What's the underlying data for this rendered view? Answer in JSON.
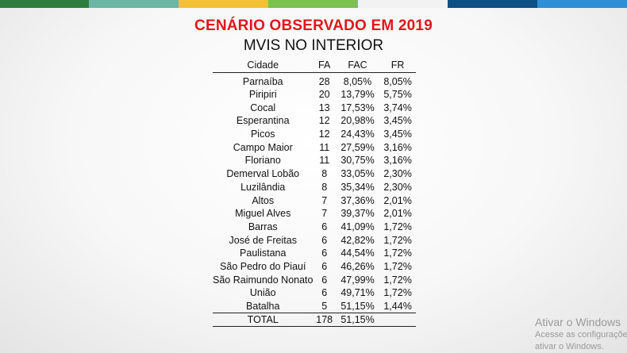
{
  "header_stripes": [
    {
      "color": "#2e7d3f"
    },
    {
      "color": "#6bb6a5"
    },
    {
      "color": "#f3c234"
    },
    {
      "color": "#7cc24e"
    },
    {
      "color": "#f2f2f2"
    },
    {
      "color": "#0e4f84"
    },
    {
      "color": "#2f8fd6"
    }
  ],
  "title": "CENÁRIO OBSERVADO EM 2019",
  "subtitle": "MVIS NO INTERIOR",
  "table": {
    "headers": {
      "city": "Cidade",
      "fa": "FA",
      "fac": "FAC",
      "fr": "FR"
    },
    "rows": [
      {
        "city": "Parnaíba",
        "fa": "28",
        "fac": "8,05%",
        "fr": "8,05%"
      },
      {
        "city": "Piripiri",
        "fa": "20",
        "fac": "13,79%",
        "fr": "5,75%"
      },
      {
        "city": "Cocal",
        "fa": "13",
        "fac": "17,53%",
        "fr": "3,74%"
      },
      {
        "city": "Esperantina",
        "fa": "12",
        "fac": "20,98%",
        "fr": "3,45%"
      },
      {
        "city": "Picos",
        "fa": "12",
        "fac": "24,43%",
        "fr": "3,45%"
      },
      {
        "city": "Campo Maior",
        "fa": "11",
        "fac": "27,59%",
        "fr": "3,16%"
      },
      {
        "city": "Floriano",
        "fa": "11",
        "fac": "30,75%",
        "fr": "3,16%"
      },
      {
        "city": "Demerval Lobão",
        "fa": "8",
        "fac": "33,05%",
        "fr": "2,30%"
      },
      {
        "city": "Luzilândia",
        "fa": "8",
        "fac": "35,34%",
        "fr": "2,30%"
      },
      {
        "city": "Altos",
        "fa": "7",
        "fac": "37,36%",
        "fr": "2,01%"
      },
      {
        "city": "Miguel Alves",
        "fa": "7",
        "fac": "39,37%",
        "fr": "2,01%"
      },
      {
        "city": "Barras",
        "fa": "6",
        "fac": "41,09%",
        "fr": "1,72%"
      },
      {
        "city": "José de Freitas",
        "fa": "6",
        "fac": "42,82%",
        "fr": "1,72%"
      },
      {
        "city": "Paulistana",
        "fa": "6",
        "fac": "44,54%",
        "fr": "1,72%"
      },
      {
        "city": "São Pedro do Piauí",
        "fa": "6",
        "fac": "46,26%",
        "fr": "1,72%"
      },
      {
        "city": "São Raimundo Nonato",
        "fa": "6",
        "fac": "47,99%",
        "fr": "1,72%"
      },
      {
        "city": "União",
        "fa": "6",
        "fac": "49,71%",
        "fr": "1,72%"
      },
      {
        "city": "Batalha",
        "fa": "5",
        "fac": "51,15%",
        "fr": "1,44%"
      }
    ],
    "total": {
      "label": "TOTAL",
      "fa": "178",
      "fac": "51,15%"
    }
  },
  "watermark": {
    "line1": "Ativar o Windows",
    "line2": "Acesse as configurações",
    "line3": "ativar o Windows."
  }
}
